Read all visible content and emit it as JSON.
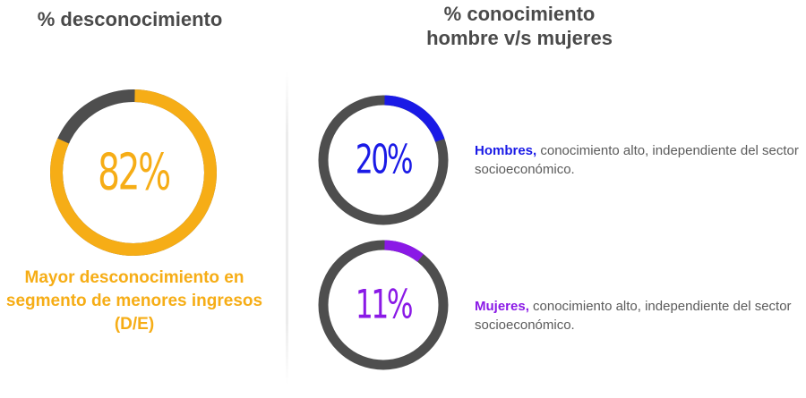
{
  "left_panel": {
    "title": "% desconocimiento",
    "caption": "Mayor desconocimiento en segmento de menores ingresos (D/E)"
  },
  "right_panel": {
    "title_line1": "% conocimiento",
    "title_line2": "hombre v/s mujeres",
    "hombres": {
      "bold": "Hombres,",
      "text": " conocimiento alto, independiente del sector socioeconómico."
    },
    "mujeres": {
      "bold": "Mujeres,",
      "text": " conocimiento alto, independiente del sector socioeconómico."
    }
  },
  "colors": {
    "track": "#4e4e4e",
    "orange": "#f6ad16",
    "blue": "#1a1ae6",
    "purple": "#8a19e6"
  },
  "chart_data": [
    {
      "type": "pie",
      "categories": [
        "desconocimiento",
        "resto"
      ],
      "values": [
        82,
        18
      ],
      "label": "82%",
      "color": "#f6ad16"
    },
    {
      "type": "pie",
      "categories": [
        "Hombres",
        "resto"
      ],
      "values": [
        20,
        80
      ],
      "label": "20%",
      "color": "#1a1ae6"
    },
    {
      "type": "pie",
      "categories": [
        "Mujeres",
        "resto"
      ],
      "values": [
        11,
        89
      ],
      "label": "11%",
      "color": "#8a19e6"
    }
  ]
}
